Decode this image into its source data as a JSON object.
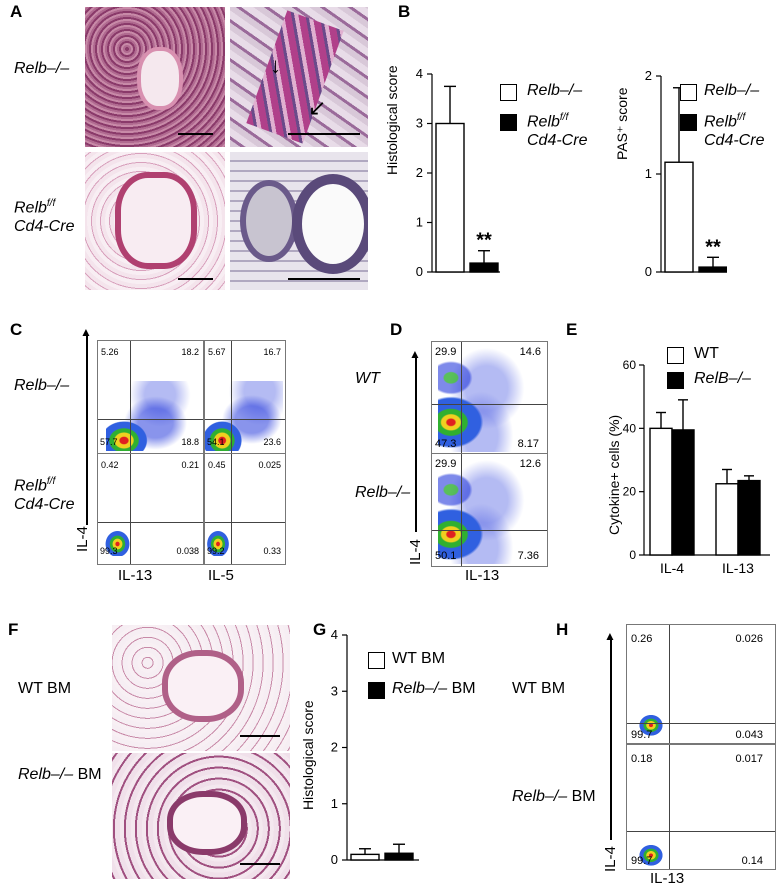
{
  "panels": {
    "A": "A",
    "B": "B",
    "C": "C",
    "D": "D",
    "E": "E",
    "F": "F",
    "G": "G",
    "H": "H"
  },
  "genotypes": {
    "relb_ko": "Relb–/–",
    "relb_ff": "Relb",
    "relb_ff_sup": "f/f",
    "cd4cre": "Cd4-Cre",
    "wt": "WT",
    "relb_ko_upper": "RelB–/–",
    "wt_bm": "WT BM",
    "relb_ko_bm_it": "Relb–/–",
    "bm": " BM"
  },
  "axes": {
    "il4": "IL-4",
    "il13": "IL-13",
    "il5": "IL-5",
    "hist_score": "Histological score",
    "pas_score": "PAS⁺ score",
    "cyto_pct": "Cytokine+ cells (%)"
  },
  "flow_C": {
    "relb_ko_il13": {
      "ul": "5.26",
      "ur": "18.2",
      "ll": "57.7",
      "lr": "18.8"
    },
    "relb_ko_il5": {
      "ul": "5.67",
      "ur": "16.7",
      "ll": "54.1",
      "lr": "23.6"
    },
    "relb_ff_il13": {
      "ul": "0.42",
      "ur": "0.21",
      "ll": "99.3",
      "lr": "0.038"
    },
    "relb_ff_il5": {
      "ul": "0.45",
      "ur": "0.025",
      "ll": "99.2",
      "lr": "0.33"
    }
  },
  "flow_D": {
    "wt": {
      "ul": "29.9",
      "ur": "14.6",
      "ll": "47.3",
      "lr": "8.17"
    },
    "relb_ko": {
      "ul": "29.9",
      "ur": "12.6",
      "ll": "50.1",
      "lr": "7.36"
    }
  },
  "flow_H": {
    "wt_bm": {
      "ul": "0.26",
      "ur": "0.026",
      "ll": "99.7",
      "lr": "0.043"
    },
    "relb_ko_bm": {
      "ul": "0.18",
      "ur": "0.017",
      "ll": "99.7",
      "lr": "0.14"
    }
  },
  "significance": "**",
  "chart_data": [
    {
      "id": "B-left",
      "type": "bar",
      "categories": [
        "Relb–/–",
        "Relbf/f Cd4-Cre"
      ],
      "values": [
        3.0,
        0.18
      ],
      "errors": [
        0.75,
        0.25
      ],
      "ylabel": "Histological score",
      "ylim": [
        0,
        4
      ],
      "yticks": [
        0,
        1,
        2,
        3,
        4
      ],
      "fills": [
        "#ffffff",
        "#000000"
      ]
    },
    {
      "id": "B-right",
      "type": "bar",
      "categories": [
        "Relb–/–",
        "Relbf/f Cd4-Cre"
      ],
      "values": [
        1.12,
        0.05
      ],
      "errors": [
        0.76,
        0.1
      ],
      "ylabel": "PAS⁺ score",
      "ylim": [
        0,
        2
      ],
      "yticks": [
        0,
        1,
        2
      ],
      "fills": [
        "#ffffff",
        "#000000"
      ]
    },
    {
      "id": "E",
      "type": "bar",
      "categories": [
        "IL-4",
        "IL-13"
      ],
      "series": [
        {
          "name": "WT",
          "values": [
            40,
            22.5
          ],
          "errors": [
            5,
            4.5
          ],
          "fill": "#ffffff"
        },
        {
          "name": "RelB–/–",
          "values": [
            39.5,
            23.5
          ],
          "errors": [
            9.5,
            1.5
          ],
          "fill": "#000000"
        }
      ],
      "ylabel": "Cytokine+ cells (%)",
      "ylim": [
        0,
        60
      ],
      "yticks": [
        0,
        20,
        40,
        60
      ]
    },
    {
      "id": "G",
      "type": "bar",
      "categories": [
        "WT BM",
        "Relb–/– BM"
      ],
      "values": [
        0.1,
        0.12
      ],
      "errors": [
        0.1,
        0.16
      ],
      "ylabel": "Histological score",
      "ylim": [
        0,
        4
      ],
      "yticks": [
        0,
        1,
        2,
        3,
        4
      ],
      "fills": [
        "#ffffff",
        "#000000"
      ]
    }
  ]
}
